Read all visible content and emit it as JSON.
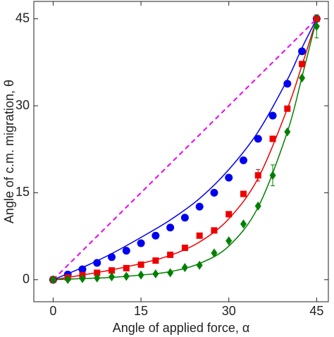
{
  "chart_data": {
    "type": "scatter",
    "xlabel": "Angle of applied force, α",
    "ylabel": "Angle of c.m. migration, θ",
    "xlim": [
      -3.3,
      47
    ],
    "ylim": [
      -3.8,
      48
    ],
    "xticks": [
      0,
      15,
      30,
      45
    ],
    "yticks": [
      0,
      15,
      30,
      45
    ],
    "series": [
      {
        "color": "#0000ee",
        "marker": "circle",
        "x": [
          0,
          2.5,
          5,
          7.5,
          10,
          12.5,
          15,
          17.5,
          20,
          22.5,
          25,
          27.5,
          30,
          32.5,
          35,
          37.5,
          40,
          42.5,
          45
        ],
        "values": [
          0,
          0.9,
          1.8,
          2.9,
          3.9,
          5.0,
          6.3,
          7.6,
          9.0,
          10.7,
          12.6,
          15.0,
          17.6,
          20.6,
          24.3,
          28.3,
          33.8,
          39.4,
          45
        ]
      },
      {
        "color": "#ee0000",
        "marker": "square",
        "x": [
          0,
          2.5,
          5,
          7.5,
          10,
          12.5,
          15,
          17.5,
          20,
          22.5,
          25,
          27.5,
          30,
          32.5,
          35,
          37.5,
          40,
          42.5,
          45
        ],
        "values": [
          0,
          0.4,
          0.8,
          1.2,
          1.6,
          2.0,
          2.6,
          3.3,
          4.3,
          5.5,
          7.6,
          8.5,
          11.3,
          14.8,
          18.0,
          24.3,
          29.5,
          37.2,
          45
        ],
        "errors": [
          null,
          null,
          null,
          null,
          null,
          null,
          null,
          null,
          null,
          null,
          null,
          null,
          null,
          null,
          1.0,
          null,
          null,
          null,
          null
        ]
      },
      {
        "color": "#008000",
        "marker": "diamond",
        "x": [
          0,
          2.5,
          5,
          7.5,
          10,
          12.5,
          15,
          17.5,
          20,
          22.5,
          25,
          27.5,
          30,
          32.5,
          35,
          37.5,
          40,
          42.5,
          45
        ],
        "values": [
          0,
          0.05,
          0.2,
          0.3,
          0.5,
          0.6,
          0.8,
          1.0,
          1.2,
          2.1,
          2.5,
          4.6,
          6.7,
          9.6,
          12.7,
          18.0,
          25.5,
          34.8,
          43.7
        ],
        "errors": [
          null,
          null,
          null,
          null,
          null,
          null,
          null,
          null,
          null,
          null,
          null,
          null,
          null,
          null,
          null,
          1.8,
          null,
          null,
          2.0
        ]
      }
    ],
    "curves": [
      {
        "color": "#0000ee",
        "x": [
          0,
          5,
          10,
          15,
          20,
          25,
          30,
          35,
          40,
          42.5,
          45
        ],
        "values": [
          0,
          2.1,
          4.5,
          7.3,
          10.3,
          14.0,
          19.0,
          25.5,
          34.5,
          40,
          45
        ]
      },
      {
        "color": "#ee0000",
        "x": [
          0,
          5,
          10,
          15,
          20,
          25,
          30,
          35,
          40,
          42.5,
          45
        ],
        "values": [
          0,
          0.8,
          1.7,
          2.8,
          4.2,
          6.5,
          10.5,
          17.5,
          29.5,
          37,
          45
        ]
      },
      {
        "color": "#008000",
        "x": [
          0,
          5,
          10,
          15,
          20,
          25,
          30,
          35,
          40,
          42.5,
          45
        ],
        "values": [
          0,
          0.2,
          0.4,
          0.8,
          1.4,
          2.8,
          5.8,
          12.5,
          25.5,
          35,
          45
        ]
      },
      {
        "color": "#ee00ee",
        "dashed": true,
        "x": [
          0,
          45
        ],
        "values": [
          0,
          45
        ]
      }
    ]
  }
}
